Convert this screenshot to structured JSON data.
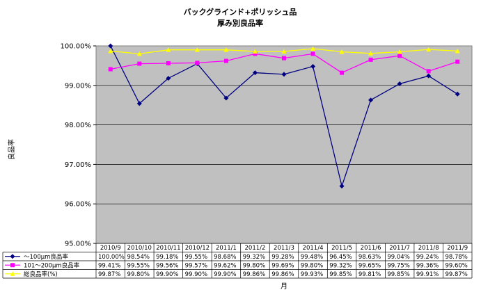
{
  "chart_data": {
    "type": "line",
    "title": "バックグラインド+ポリッシュ品",
    "subtitle": "厚み別良品率",
    "ylabel": "良品率",
    "xlabel": "月",
    "ylim": [
      95.0,
      100.0
    ],
    "yticks": [
      "95.00%",
      "96.00%",
      "97.00%",
      "98.00%",
      "99.00%",
      "100.00%"
    ],
    "grid": true,
    "legend": "data-table",
    "categories": [
      "2010/9",
      "2010/10",
      "2010/11",
      "2010/12",
      "2011/1",
      "2011/2",
      "2011/3",
      "2011/4",
      "2011/5",
      "2011/6",
      "2011/7",
      "2011/8",
      "2011/9"
    ],
    "series": [
      {
        "name": "～100μm良品率",
        "color": "#000080",
        "marker": "diamond",
        "values": [
          100.0,
          98.54,
          99.18,
          99.55,
          98.68,
          99.32,
          99.28,
          99.48,
          96.45,
          98.63,
          99.04,
          99.24,
          98.78
        ],
        "labels": [
          "100.00%",
          "98.54%",
          "99.18%",
          "99.55%",
          "98.68%",
          "99.32%",
          "99.28%",
          "99.48%",
          "96.45%",
          "98.63%",
          "99.04%",
          "99.24%",
          "98.78%"
        ]
      },
      {
        "name": "101～200μm良品率",
        "color": "#ff00ff",
        "marker": "square",
        "values": [
          99.41,
          99.55,
          99.56,
          99.57,
          99.62,
          99.8,
          99.69,
          99.8,
          99.32,
          99.65,
          99.75,
          99.36,
          99.6
        ],
        "labels": [
          "99.41%",
          "99.55%",
          "99.56%",
          "99.57%",
          "99.62%",
          "99.80%",
          "99.69%",
          "99.80%",
          "99.32%",
          "99.65%",
          "99.75%",
          "99.36%",
          "99.60%"
        ]
      },
      {
        "name": "総良品率(%)",
        "color": "#ffff00",
        "marker": "triangle",
        "values": [
          99.87,
          99.8,
          99.9,
          99.9,
          99.9,
          99.86,
          99.86,
          99.93,
          99.85,
          99.81,
          99.85,
          99.91,
          99.87
        ],
        "labels": [
          "99.87%",
          "99.80%",
          "99.90%",
          "99.90%",
          "99.90%",
          "99.86%",
          "99.86%",
          "99.93%",
          "99.85%",
          "99.81%",
          "99.85%",
          "99.91%",
          "99.87%"
        ]
      }
    ],
    "plot_background": "#c0c0c0"
  }
}
